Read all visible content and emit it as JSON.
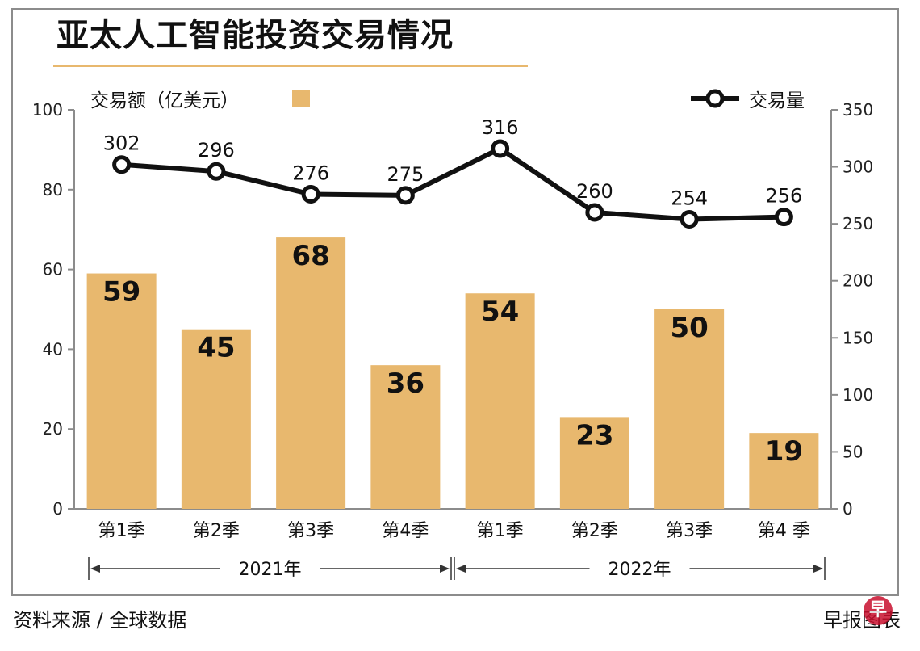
{
  "title": "亚太人工智能投资交易情况",
  "source": "资料来源 / 全球数据",
  "credit": "早报图表",
  "logo_text": "早",
  "colors": {
    "bar": "#e8b86e",
    "line": "#111111",
    "axis": "#8c8c8c",
    "underline": "#e8b86e"
  },
  "chart_data": {
    "type": "bar",
    "title": "亚太人工智能投资交易情况",
    "categories": [
      "第1季",
      "第2季",
      "第3季",
      "第4季",
      "第1季",
      "第2季",
      "第3季",
      "第4 季"
    ],
    "years": [
      {
        "label": "2021年",
        "from": 0,
        "to": 3
      },
      {
        "label": "2022年",
        "from": 4,
        "to": 7
      }
    ],
    "series": [
      {
        "name": "交易额（亿美元）",
        "type": "bar",
        "axis": "left",
        "values": [
          59,
          45,
          68,
          36,
          54,
          23,
          50,
          19
        ]
      },
      {
        "name": "交易量",
        "type": "line",
        "axis": "right",
        "values": [
          302,
          296,
          276,
          275,
          316,
          260,
          254,
          256
        ]
      }
    ],
    "left_axis": {
      "ylim": [
        0,
        100
      ],
      "ticks": [
        0,
        20,
        40,
        60,
        80,
        100
      ]
    },
    "right_axis": {
      "ylim": [
        0,
        350
      ],
      "ticks": [
        0,
        50,
        100,
        150,
        200,
        250,
        300,
        350
      ]
    },
    "legend": {
      "bar_label": "交易额（亿美元）",
      "line_label": "交易量",
      "placement": "top"
    },
    "grid": false
  }
}
